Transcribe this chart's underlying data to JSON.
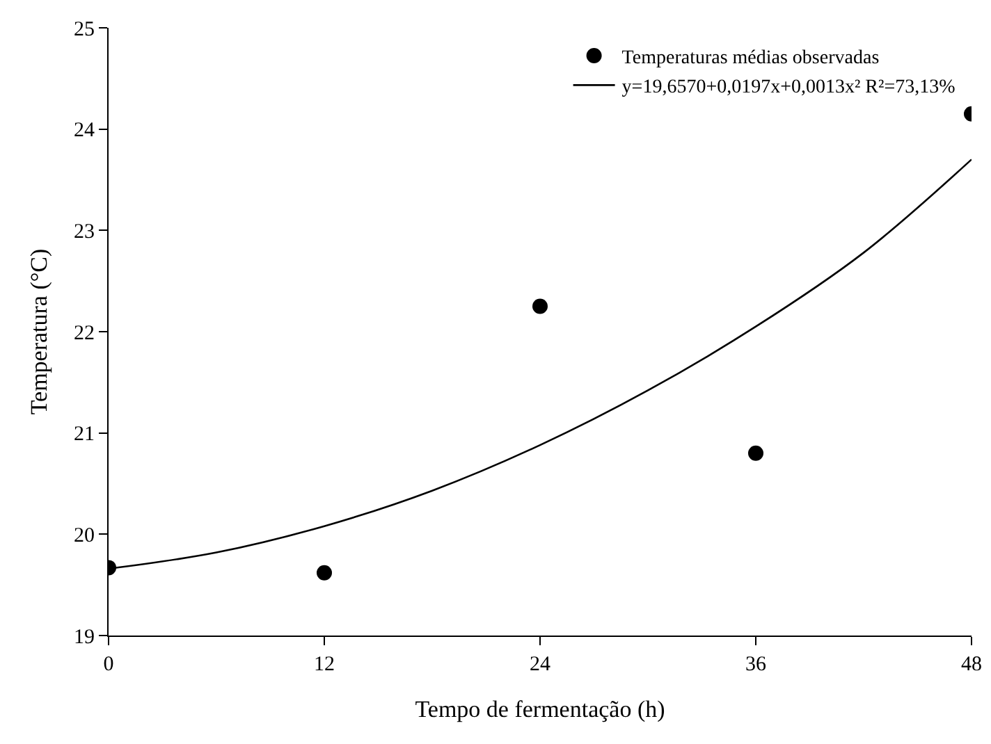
{
  "chart_data": {
    "type": "scatter",
    "xlabel": "Tempo de fermentação (h)",
    "ylabel": "Temperatura (°C)",
    "xlim": [
      0,
      48
    ],
    "xticks": [
      0,
      12,
      24,
      36,
      48
    ],
    "ylim": [
      19,
      25
    ],
    "yticks": [
      19,
      20,
      21,
      22,
      23,
      24,
      25
    ],
    "grid": false,
    "legend": "top right",
    "series": [
      {
        "name": "Temperaturas médias observadas",
        "marker": "circle",
        "color": "#000000",
        "x": [
          0,
          12,
          24,
          36,
          48
        ],
        "values": [
          19.67,
          19.62,
          22.25,
          20.8,
          24.15
        ]
      },
      {
        "name": "y=19,6570+0,0197x+0,0013x² R²=73,13%",
        "type": "line",
        "marker": "none",
        "color": "#000000",
        "line_style": "solid",
        "x": [
          0,
          6,
          12,
          18,
          24,
          30,
          36,
          42,
          48
        ],
        "values": [
          19.66,
          19.82,
          20.08,
          20.43,
          20.88,
          21.42,
          22.05,
          22.78,
          23.7
        ]
      }
    ]
  }
}
